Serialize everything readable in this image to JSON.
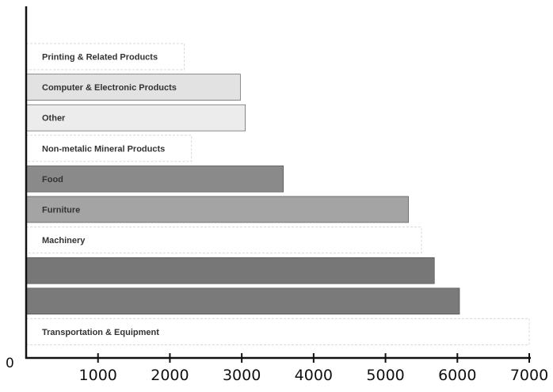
{
  "chart_data": {
    "type": "bar",
    "orientation": "horizontal",
    "title": "",
    "xlabel": "",
    "ylabel": "",
    "xlim": [
      0,
      7000
    ],
    "x_ticks": [
      1000,
      2000,
      3000,
      4000,
      5000,
      6000,
      7000
    ],
    "origin_label": "0",
    "grid": false,
    "categories": [
      "Printing & Related Products",
      "Computer & Electronic Products",
      "Other",
      "Non-metalic Mineral Products",
      "Food",
      "Furniture",
      "Machinery",
      "",
      "",
      "Transportation & Equipment"
    ],
    "values": [
      2200,
      2980,
      3050,
      2300,
      3580,
      5320,
      5500,
      5680,
      6030,
      7000
    ],
    "colors": [
      "#ffffff",
      "#e2e2e2",
      "#ececec",
      "#ffffff",
      "#8a8a8a",
      "#a4a4a4",
      "#ffffff",
      "#777777",
      "#7a7a7a",
      "#ffffff"
    ]
  }
}
